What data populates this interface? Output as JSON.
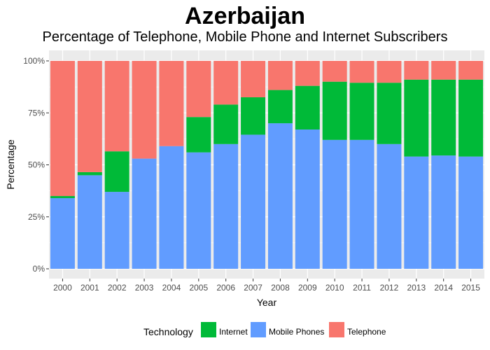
{
  "chart_data": {
    "type": "bar",
    "stacked": true,
    "title": "Azerbaijan",
    "subtitle": "Percentage of Telephone, Mobile Phone and Internet Subscribers",
    "xlabel": "Year",
    "ylabel": "Percentage",
    "ylim": [
      0,
      100
    ],
    "yticks": [
      "0%",
      "25%",
      "50%",
      "75%",
      "100%"
    ],
    "categories": [
      "2000",
      "2001",
      "2002",
      "2003",
      "2004",
      "2005",
      "2006",
      "2007",
      "2008",
      "2009",
      "2010",
      "2011",
      "2012",
      "2013",
      "2014",
      "2015"
    ],
    "series": [
      {
        "name": "Mobile Phones",
        "color": "#619CFF",
        "values": [
          34,
          45,
          37,
          53,
          59,
          56,
          60,
          64.5,
          70,
          67,
          62,
          62,
          60,
          54,
          54.5,
          54
        ]
      },
      {
        "name": "Internet",
        "color": "#00BA38",
        "values": [
          1,
          1.5,
          19.5,
          0,
          0,
          17,
          19,
          18,
          16,
          21,
          28,
          27.5,
          29.5,
          37,
          36.5,
          37
        ]
      },
      {
        "name": "Telephone",
        "color": "#F8766D",
        "values": [
          65,
          53.5,
          43.5,
          47,
          41,
          27,
          21,
          17.5,
          14,
          12,
          10,
          10.5,
          10.5,
          9,
          9,
          9
        ]
      }
    ],
    "legend_title": "Technology",
    "legend_order": [
      "Internet",
      "Mobile Phones",
      "Telephone"
    ],
    "legend_position": "bottom",
    "grid": true,
    "panel_background": "#EBEBEB",
    "grid_color": "#FFFFFF"
  }
}
